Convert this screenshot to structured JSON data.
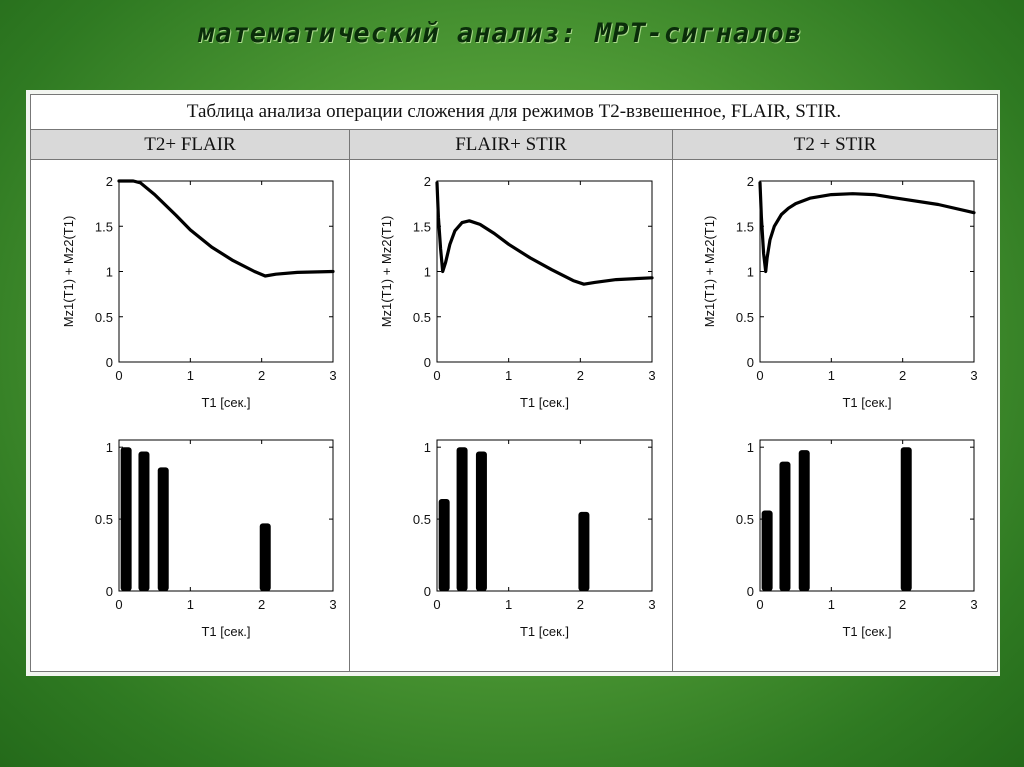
{
  "slide": {
    "title": "математический анализ: МРТ-сигналов"
  },
  "table": {
    "caption": "Таблица анализа операции сложения для режимов Т2-взвешенное, FLAIR, STIR.",
    "columns": [
      {
        "header": "T2+ FLAIR"
      },
      {
        "header": "FLAIR+ STIR"
      },
      {
        "header": "T2 + STIR"
      }
    ]
  },
  "colors": {
    "background": "#4f9a36",
    "title": "#0a2d0a",
    "header_fill": "#d9d9d9",
    "line": "#000000"
  },
  "chart_data": [
    {
      "type": "line",
      "xlabel": "T1  [сек.]",
      "ylabel": "Mz1(T1) + Mz2(T1)",
      "xlim": [
        0,
        3
      ],
      "ylim": [
        0,
        2
      ],
      "xticks": [
        "0",
        "1",
        "2",
        "3"
      ],
      "yticks": [
        "0",
        "0.5",
        "1",
        "1.5",
        "2"
      ],
      "x": [
        0,
        0.2,
        0.3,
        0.5,
        0.8,
        1.0,
        1.3,
        1.6,
        1.9,
        2.05,
        2.2,
        2.5,
        3.0
      ],
      "y": [
        2.0,
        2.0,
        1.98,
        1.85,
        1.62,
        1.46,
        1.27,
        1.12,
        1.0,
        0.95,
        0.97,
        0.99,
        1.0
      ]
    },
    {
      "type": "line",
      "xlabel": "T1  [сек.]",
      "ylabel": "Mz1(T1) + Mz2(T1)",
      "xlim": [
        0,
        3
      ],
      "ylim": [
        0,
        2
      ],
      "xticks": [
        "0",
        "1",
        "2",
        "3"
      ],
      "yticks": [
        "0",
        "0.5",
        "1",
        "1.5",
        "2"
      ],
      "x": [
        0,
        0.02,
        0.05,
        0.08,
        0.12,
        0.18,
        0.25,
        0.35,
        0.45,
        0.6,
        0.8,
        1.0,
        1.3,
        1.6,
        1.9,
        2.05,
        2.2,
        2.5,
        3.0
      ],
      "y": [
        1.98,
        1.6,
        1.25,
        1.0,
        1.1,
        1.3,
        1.45,
        1.54,
        1.56,
        1.52,
        1.42,
        1.3,
        1.15,
        1.02,
        0.9,
        0.86,
        0.88,
        0.91,
        0.93
      ]
    },
    {
      "type": "line",
      "xlabel": "T1  [сек.]",
      "ylabel": "Mz1(T1) + Mz2(T1)",
      "xlim": [
        0,
        3
      ],
      "ylim": [
        0,
        2
      ],
      "xticks": [
        "0",
        "1",
        "2",
        "3"
      ],
      "yticks": [
        "0",
        "0.5",
        "1",
        "1.5",
        "2"
      ],
      "x": [
        0,
        0.02,
        0.05,
        0.08,
        0.1,
        0.14,
        0.2,
        0.3,
        0.4,
        0.5,
        0.7,
        1.0,
        1.3,
        1.6,
        2.0,
        2.5,
        3.0
      ],
      "y": [
        1.98,
        1.6,
        1.2,
        1.0,
        1.15,
        1.35,
        1.5,
        1.63,
        1.7,
        1.75,
        1.81,
        1.85,
        1.86,
        1.85,
        1.8,
        1.74,
        1.65
      ]
    },
    {
      "type": "bar",
      "xlabel": "T1  [сек.]",
      "ylabel": "",
      "xlim": [
        0,
        3
      ],
      "ylim": [
        0,
        1.05
      ],
      "xticks": [
        "0",
        "1",
        "2",
        "3"
      ],
      "yticks": [
        "0",
        "0.5",
        "1"
      ],
      "x": [
        0.1,
        0.35,
        0.62,
        2.05
      ],
      "values": [
        1.0,
        0.97,
        0.86,
        0.47
      ]
    },
    {
      "type": "bar",
      "xlabel": "T1  [сек.]",
      "ylabel": "",
      "xlim": [
        0,
        3
      ],
      "ylim": [
        0,
        1.05
      ],
      "xticks": [
        "0",
        "1",
        "2",
        "3"
      ],
      "yticks": [
        "0",
        "0.5",
        "1"
      ],
      "x": [
        0.1,
        0.35,
        0.62,
        2.05
      ],
      "values": [
        0.64,
        1.0,
        0.97,
        0.55
      ]
    },
    {
      "type": "bar",
      "xlabel": "T1  [сек.]",
      "ylabel": "",
      "xlim": [
        0,
        3
      ],
      "ylim": [
        0,
        1.05
      ],
      "xticks": [
        "0",
        "1",
        "2",
        "3"
      ],
      "yticks": [
        "0",
        "0.5",
        "1"
      ],
      "x": [
        0.1,
        0.35,
        0.62,
        2.05
      ],
      "values": [
        0.56,
        0.9,
        0.98,
        1.0
      ]
    }
  ]
}
